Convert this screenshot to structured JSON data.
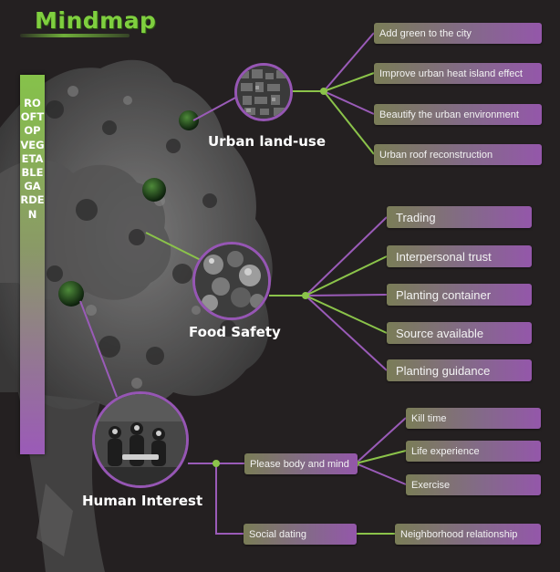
{
  "logo": "Mindmap",
  "banner": "ROOFTOP VEGETABLE GARDEN",
  "colors": {
    "background": "#242021",
    "accent_green": "#7fcf3f",
    "accent_purple": "#9656b4",
    "line_green": "#8bc34a",
    "line_purple": "#9a5bb8"
  },
  "topics": [
    {
      "name": "Urban land-use",
      "icon": "city-aerial-photo",
      "items": [
        "Add green to the city",
        "Improve urban heat island effect",
        "Beautify the urban environment",
        "Urban roof reconstruction"
      ]
    },
    {
      "name": "Food Safety",
      "icon": "vegetables-photo",
      "items": [
        "Trading",
        "Interpersonal trust",
        "Planting container",
        "Source available",
        "Planting guidance"
      ]
    },
    {
      "name": "Human Interest",
      "icon": "people-gathering-photo",
      "branches": [
        {
          "label": "Please body and mind",
          "items": [
            "Kill time",
            "Life experience",
            "Exercise"
          ]
        },
        {
          "label": "Social dating",
          "items": [
            "Neighborhood relationship"
          ]
        }
      ]
    }
  ]
}
